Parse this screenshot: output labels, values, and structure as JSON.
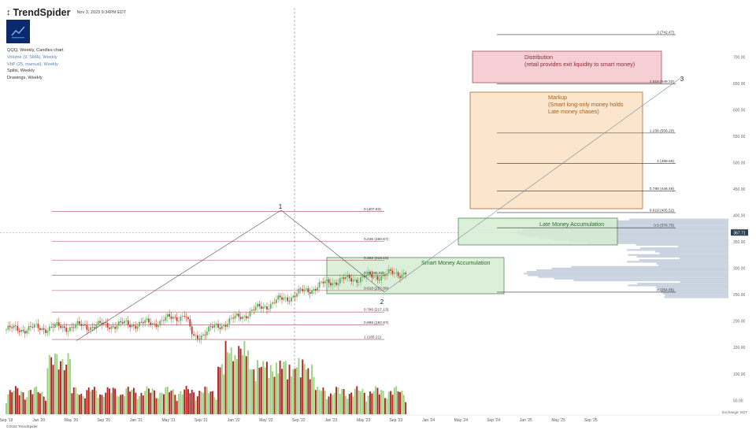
{
  "header": {
    "brand": "TrendSpider",
    "timestamp": "Nov 3, 2023 9:34PM EDT"
  },
  "legend": {
    "symbol_line": "QQQ, Weekly, Candles chart",
    "items": [
      {
        "label": "Volume (9, SMA), Weekly",
        "color": "#5b7fb3"
      },
      {
        "label": "VbP (25, manual), Weekly",
        "color": "#5b7fb3"
      },
      {
        "label": "Splits, Weekly",
        "color": "#333333"
      },
      {
        "label": "Drawings, Weekly",
        "color": "#333333"
      }
    ]
  },
  "footer": {
    "copyright": "©2023 TrendSpider",
    "exchange": "Exchange: EDT"
  },
  "chart_data": {
    "type": "candlestick",
    "price_axis_labels": [
      "700.00",
      "650.00",
      "600.00",
      "550.00",
      "500.00",
      "450.00",
      "400.00",
      "350.00",
      "300.00",
      "250.00",
      "200.00",
      "150.00",
      "100.00",
      "50.00"
    ],
    "price_axis_values": [
      700,
      650,
      600,
      550,
      500,
      450,
      400,
      350,
      300,
      250,
      200,
      150,
      100,
      50
    ],
    "x_tick_labels": [
      "Sep '19",
      "Jan '20",
      "May '20",
      "Sep '20",
      "Jan '21",
      "May '21",
      "Sep '21",
      "Jan '22",
      "May '22",
      "Sep '22",
      "Jan '23",
      "May '23",
      "Sep '23",
      "Jan '24",
      "May '24",
      "Sep '24",
      "Jan '25",
      "May '25",
      "Sep '25"
    ],
    "current_price": "367.71",
    "current_value": 367.71,
    "price_path": [
      [
        0,
        184
      ],
      [
        18,
        196
      ],
      [
        22,
        212
      ],
      [
        23,
        168
      ],
      [
        26,
        190
      ],
      [
        32,
        230
      ],
      [
        40,
        275
      ],
      [
        48,
        290
      ],
      [
        56,
        310
      ],
      [
        62,
        318
      ],
      [
        70,
        340
      ],
      [
        78,
        365
      ],
      [
        84,
        385
      ],
      [
        88,
        407
      ],
      [
        93,
        383
      ],
      [
        97,
        350
      ],
      [
        102,
        330
      ],
      [
        106,
        300
      ],
      [
        110,
        280
      ],
      [
        116,
        270
      ],
      [
        118,
        290
      ],
      [
        122,
        270
      ],
      [
        128,
        262
      ],
      [
        136,
        280
      ],
      [
        144,
        300
      ],
      [
        152,
        325
      ],
      [
        158,
        345
      ],
      [
        163,
        360
      ],
      [
        168,
        375
      ],
      [
        175,
        358
      ],
      [
        180,
        348
      ]
    ],
    "wave_labels": [
      "1",
      "2",
      "3"
    ],
    "fib_left": [
      {
        "label": "0 (407.83)",
        "value": 407.83
      },
      {
        "label": "0.236 (350.57)",
        "value": 350.57
      },
      {
        "label": "0.382 (315.15)",
        "value": 315.15
      },
      {
        "label": "0.5 (286.52)",
        "value": 286.52
      },
      {
        "label": "0.618 (257.89)",
        "value": 257.89
      },
      {
        "label": "0.786 (217.13)",
        "value": 217.13
      },
      {
        "label": "0.886 (192.87)",
        "value": 192.87
      },
      {
        "label": "1 (165.21)",
        "value": 165.21
      }
    ],
    "fib_right": [
      {
        "label": "0 (254.85)",
        "value": 254.85
      },
      {
        "label": "0.5 (376.75)",
        "value": 376.75
      },
      {
        "label": "0.618 (405.52)",
        "value": 405.52
      },
      {
        "label": "0.786 (446.48)",
        "value": 446.48
      },
      {
        "label": "1 (498.66)",
        "value": 498.66
      },
      {
        "label": "1.236 (556.20)",
        "value": 556.2
      },
      {
        "label": "1.618 (649.33)",
        "value": 649.33
      },
      {
        "label": "2 (742.47)",
        "value": 742.47
      }
    ],
    "zones": [
      {
        "name": "distribution",
        "lines": [
          "Distribution",
          "(retail provides exit liquidity to smart money)"
        ],
        "fill": "#f4c7cc",
        "stroke": "#9a3b45",
        "text_color": "#8a2b35"
      },
      {
        "name": "markup",
        "lines": [
          "Markup",
          "(Smart long-only money holds",
          "Late money chases)"
        ],
        "fill": "#fbe0c4",
        "stroke": "#9a5a20",
        "text_color": "#a0601a"
      },
      {
        "name": "late-money",
        "lines": [
          "Late Money Accumulation"
        ],
        "fill": "#d6ecd2",
        "stroke": "#3b7a3b",
        "text_color": "#2e6b2e"
      },
      {
        "name": "smart-money",
        "lines": [
          "Smart Money Accumulation"
        ],
        "fill": "#d6ecd2",
        "stroke": "#3b7a3b",
        "text_color": "#2e6b2e"
      }
    ],
    "colors": {
      "up": "#57b35a",
      "down": "#c0392b",
      "vol_up": "#9bd07e",
      "vol_down": "#b22222",
      "vbp": "#c9d3e0",
      "fib": "#333333",
      "fib_left": "#a05050"
    }
  }
}
